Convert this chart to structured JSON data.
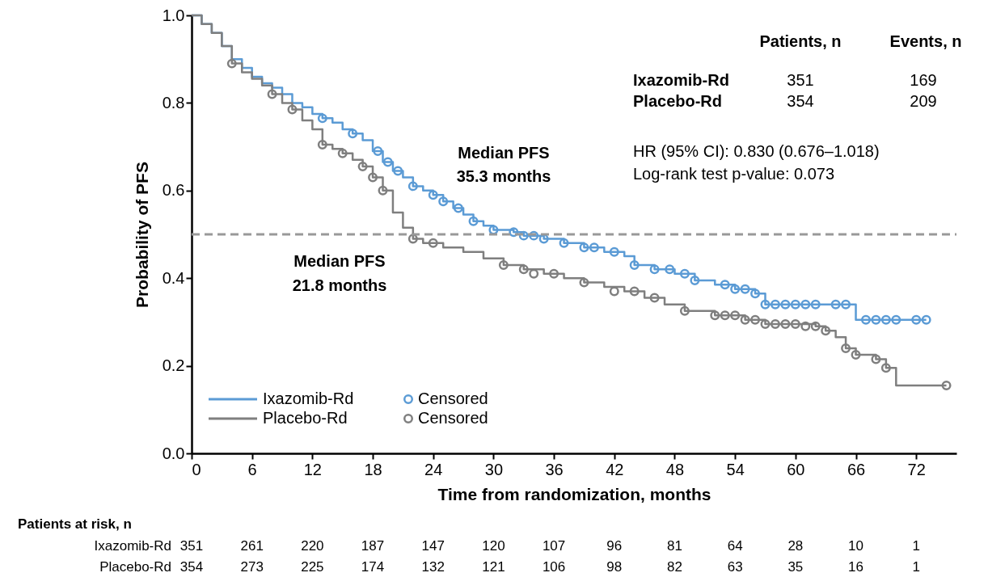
{
  "chart_data": {
    "type": "step",
    "xlabel": "Time from randomization, months",
    "ylabel": "Probability of PFS",
    "xlim": [
      0,
      76
    ],
    "ylim": [
      0,
      1.0
    ],
    "xticks": [
      0,
      6,
      12,
      18,
      24,
      30,
      36,
      42,
      48,
      54,
      60,
      66,
      72
    ],
    "yticks": [
      {
        "value": 0,
        "label": "0.0"
      },
      0.2,
      0.4,
      0.6,
      0.8,
      {
        "value": 1,
        "label": "1.0"
      }
    ],
    "grid": false,
    "legend": "bottom left",
    "line_style": "solid",
    "series": [
      {
        "name": "Ixazomib-Rd",
        "color": "#5b9bd5",
        "x": [
          0,
          1,
          2,
          3,
          4,
          5,
          6,
          7,
          8,
          9,
          10,
          11,
          12,
          13,
          14,
          15,
          16,
          17,
          18,
          19,
          20,
          21,
          22,
          23,
          24,
          25,
          26,
          27,
          28,
          29,
          30,
          32,
          33,
          35,
          37,
          39,
          41,
          43,
          44,
          46,
          48,
          50,
          52,
          54,
          56,
          57,
          65,
          66,
          73
        ],
        "values": [
          1.0,
          0.98,
          0.96,
          0.93,
          0.9,
          0.88,
          0.86,
          0.845,
          0.835,
          0.82,
          0.8,
          0.79,
          0.775,
          0.765,
          0.755,
          0.74,
          0.73,
          0.715,
          0.69,
          0.665,
          0.645,
          0.63,
          0.61,
          0.6,
          0.59,
          0.575,
          0.56,
          0.545,
          0.53,
          0.52,
          0.51,
          0.505,
          0.497,
          0.49,
          0.48,
          0.47,
          0.46,
          0.45,
          0.43,
          0.42,
          0.41,
          0.395,
          0.385,
          0.375,
          0.365,
          0.34,
          0.34,
          0.305,
          0.305
        ]
      },
      {
        "name": "Placebo-Rd",
        "color": "#7f7f7f",
        "x": [
          0,
          1,
          2,
          3,
          4,
          5,
          6,
          7,
          8,
          9,
          10,
          11,
          12,
          13,
          14,
          15,
          16,
          17,
          18,
          19,
          20,
          21,
          22,
          23,
          25,
          27,
          29,
          31,
          33,
          35,
          37,
          39,
          41,
          43,
          45,
          47,
          49,
          52,
          55,
          57,
          62,
          63,
          64,
          65,
          66,
          68,
          69,
          70,
          75
        ],
        "values": [
          1.0,
          0.98,
          0.96,
          0.93,
          0.89,
          0.87,
          0.855,
          0.84,
          0.82,
          0.8,
          0.785,
          0.76,
          0.74,
          0.705,
          0.695,
          0.685,
          0.67,
          0.655,
          0.63,
          0.6,
          0.55,
          0.515,
          0.49,
          0.48,
          0.47,
          0.46,
          0.445,
          0.43,
          0.42,
          0.41,
          0.4,
          0.39,
          0.38,
          0.37,
          0.355,
          0.34,
          0.325,
          0.315,
          0.305,
          0.295,
          0.29,
          0.28,
          0.265,
          0.24,
          0.225,
          0.215,
          0.195,
          0.155,
          0.155
        ]
      },
      {
        "name": "Censored",
        "type": "scatter",
        "marker": "circle",
        "color": "#5b9bd5",
        "x": [
          13,
          16,
          18.5,
          19.5,
          20.5,
          22,
          24,
          25,
          26.5,
          28,
          30,
          32,
          33,
          34,
          35,
          37,
          39,
          40,
          42,
          44,
          46,
          47.5,
          49,
          50,
          53,
          54,
          55,
          56,
          57,
          58,
          59,
          60,
          61,
          62,
          64,
          65,
          67,
          68,
          69,
          70,
          72,
          73
        ],
        "values": [
          0.765,
          0.73,
          0.69,
          0.665,
          0.645,
          0.61,
          0.59,
          0.575,
          0.56,
          0.53,
          0.51,
          0.505,
          0.497,
          0.497,
          0.49,
          0.48,
          0.47,
          0.47,
          0.46,
          0.43,
          0.42,
          0.42,
          0.41,
          0.395,
          0.385,
          0.375,
          0.375,
          0.365,
          0.34,
          0.34,
          0.34,
          0.34,
          0.34,
          0.34,
          0.34,
          0.34,
          0.305,
          0.305,
          0.305,
          0.305,
          0.305,
          0.305
        ]
      },
      {
        "name": "Censored",
        "type": "scatter",
        "marker": "circle",
        "color": "#7f7f7f",
        "x": [
          4,
          8,
          10,
          13,
          15,
          17,
          18,
          19,
          22,
          24,
          31,
          33,
          34,
          36,
          39,
          42,
          44,
          46,
          49,
          52,
          53,
          54,
          55,
          56,
          57,
          58,
          59,
          60,
          61,
          62,
          63,
          65,
          66,
          68,
          69,
          75
        ],
        "values": [
          0.89,
          0.82,
          0.785,
          0.705,
          0.685,
          0.655,
          0.63,
          0.6,
          0.49,
          0.48,
          0.43,
          0.42,
          0.41,
          0.41,
          0.39,
          0.37,
          0.37,
          0.355,
          0.325,
          0.315,
          0.315,
          0.315,
          0.305,
          0.305,
          0.295,
          0.295,
          0.295,
          0.295,
          0.29,
          0.29,
          0.28,
          0.24,
          0.225,
          0.215,
          0.195,
          0.155
        ]
      }
    ],
    "ref_lines": [
      {
        "axis": "y",
        "value": 0.5,
        "color": "#999999",
        "line_style": "dashed"
      }
    ],
    "annotations": [
      "Patients, n",
      "Events, n",
      "Ixazomib-Rd",
      "351",
      "169",
      "Placebo-Rd",
      "354",
      "209",
      "HR (95% CI): 0.830 (0.676–1.018)",
      "Log-rank test p-value: 0.073",
      "Median PFS",
      "35.3 months",
      "Median PFS",
      "21.8 months",
      "Patients at risk, n",
      "Ixazomib-Rd",
      "351",
      "261",
      "220",
      "187",
      "147",
      "120",
      "107",
      "96",
      "81",
      "64",
      "28",
      "10",
      "1",
      "Placebo-Rd",
      "354",
      "273",
      "225",
      "174",
      "132",
      "121",
      "106",
      "98",
      "82",
      "63",
      "35",
      "16",
      "1"
    ]
  }
}
